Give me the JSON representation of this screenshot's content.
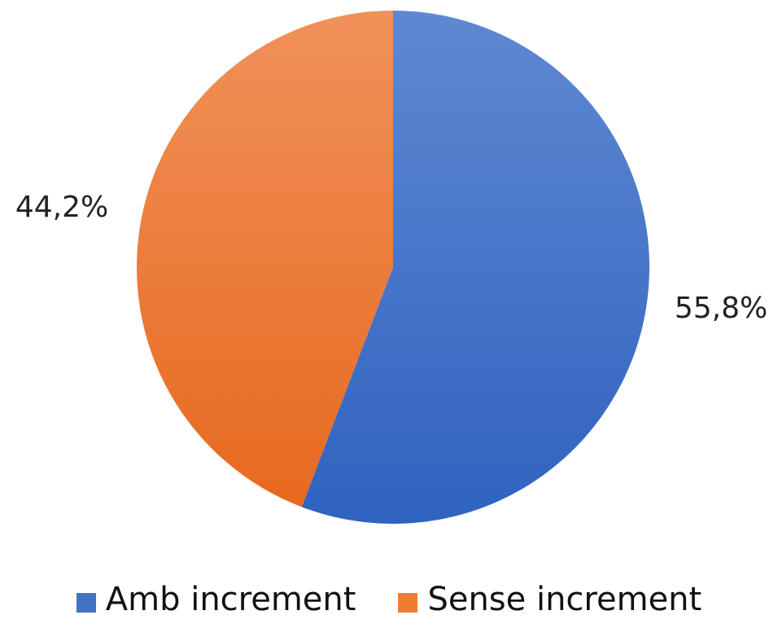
{
  "chart_data": {
    "type": "pie",
    "title": "",
    "slices": [
      {
        "name": "Amb increment",
        "value": 55.8,
        "label": "55,8%",
        "color": "#4472c4"
      },
      {
        "name": "Sense increment",
        "value": 44.2,
        "label": "44,2%",
        "color": "#ed7d31"
      }
    ],
    "start": "12 o'clock, clockwise",
    "legend_position": "bottom"
  }
}
